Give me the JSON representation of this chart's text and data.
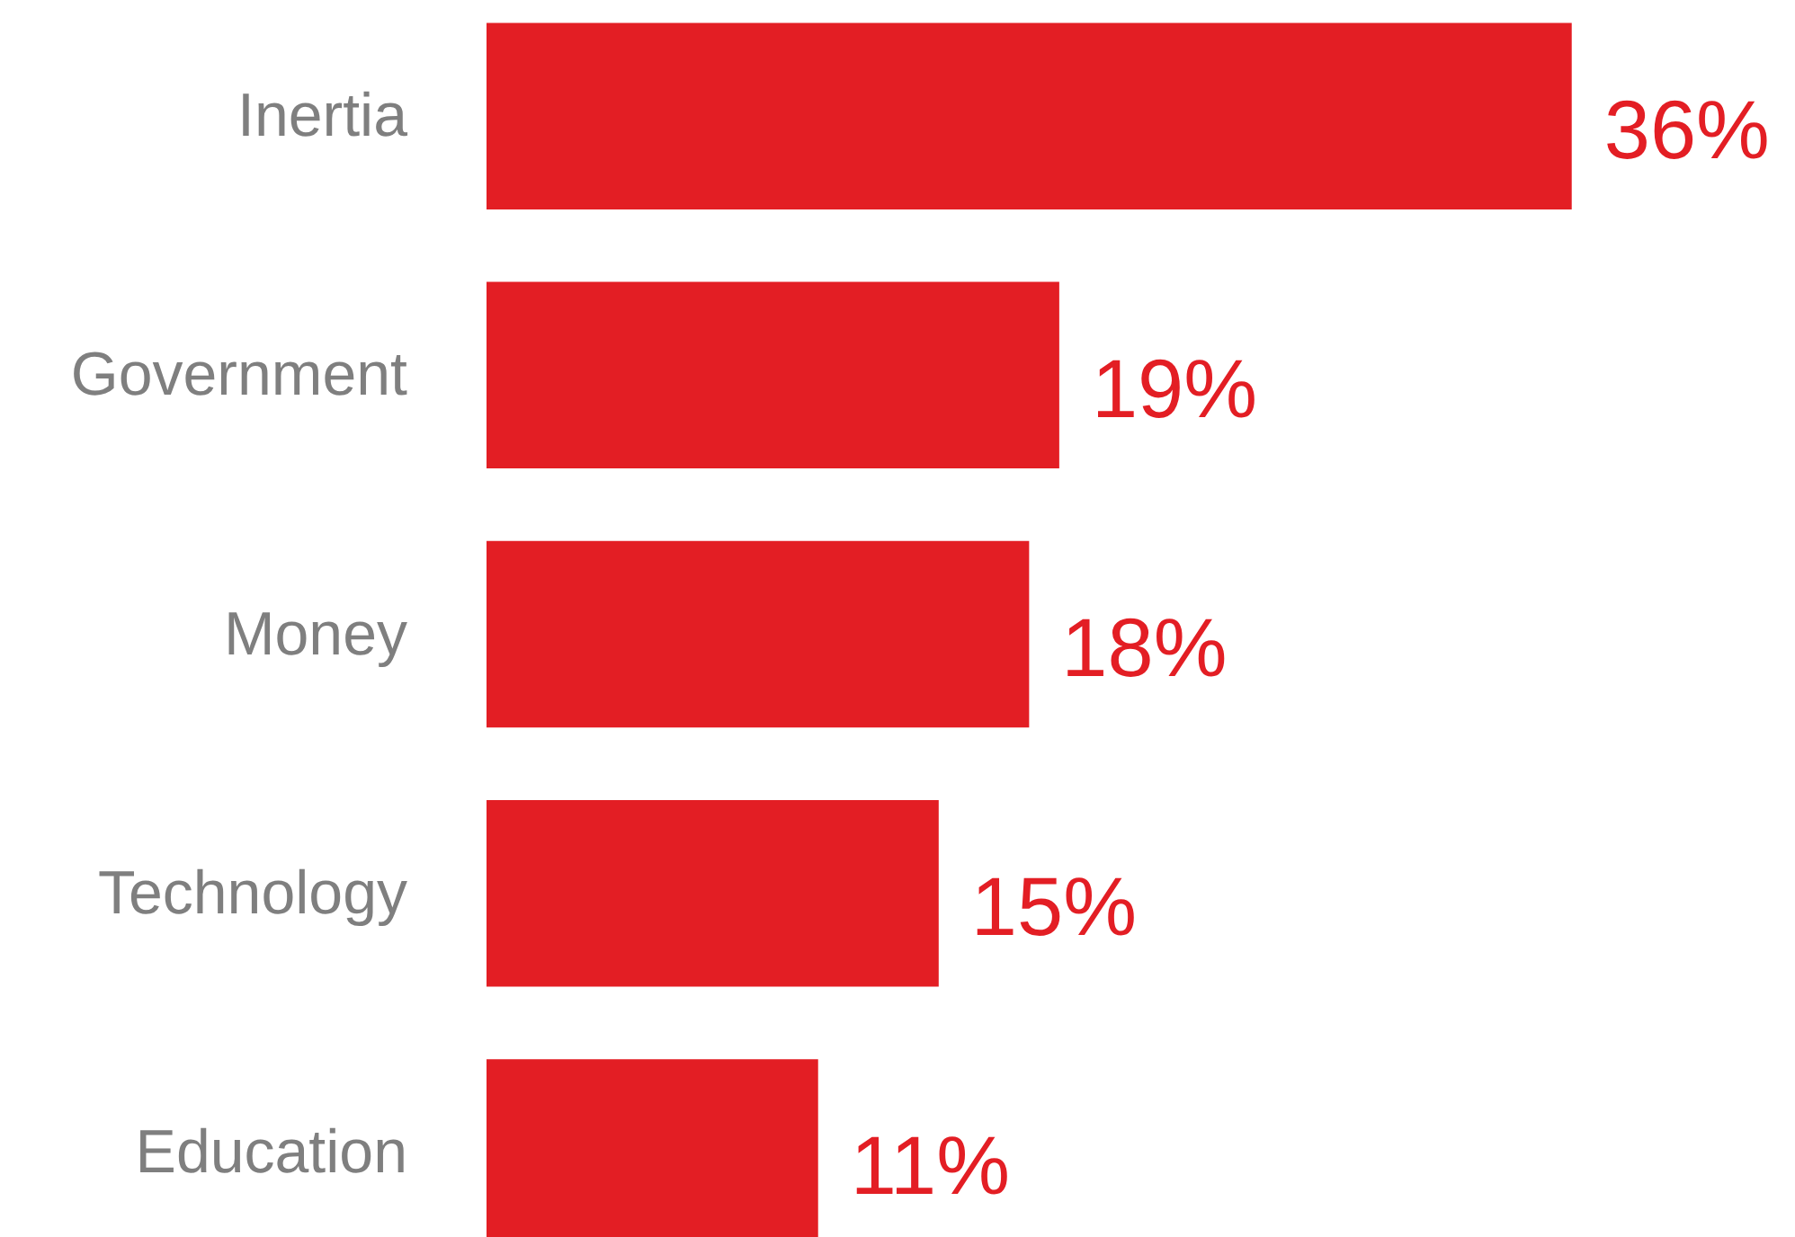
{
  "chart_data": {
    "type": "bar",
    "orientation": "horizontal",
    "categories": [
      "Inertia",
      "Government",
      "Money",
      "Technology",
      "Education"
    ],
    "values": [
      36,
      19,
      18,
      15,
      11
    ],
    "color": "#e31e24",
    "value_labels": [
      "36%",
      "19%",
      "18%",
      "15%",
      "11%"
    ],
    "grid": false
  }
}
